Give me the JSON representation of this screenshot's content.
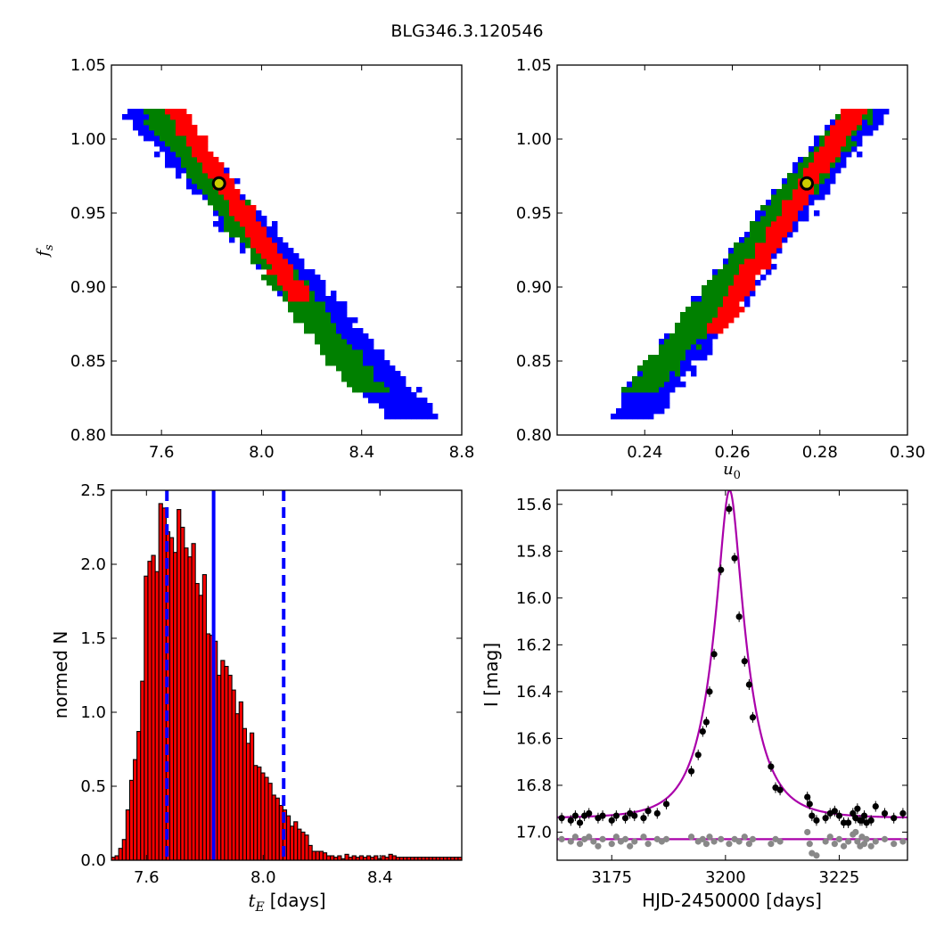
{
  "figure_title": "BLG346.3.120546",
  "chart_data": [
    {
      "id": "fs-vs-tE",
      "type": "heatmap",
      "xlim": [
        7.4,
        8.8
      ],
      "ylim": [
        0.8,
        1.05
      ],
      "xticks": [
        "7.6",
        "8.0",
        "8.4",
        "8.8"
      ],
      "yticks": [
        "0.80",
        "0.85",
        "0.90",
        "0.95",
        "1.00",
        "1.05"
      ],
      "xlabel": "",
      "ylabel": "f",
      "ylabel_sub": "s",
      "regions": [
        {
          "level": "3-sigma",
          "color": "#0000ff",
          "center": [
            [
              7.54,
              1.02
            ],
            [
              8.61,
              0.81
            ]
          ],
          "half_width_x": 0.1
        },
        {
          "level": "2-sigma",
          "color": "#008000",
          "center": [
            [
              7.58,
              1.02
            ],
            [
              8.42,
              0.83
            ]
          ],
          "half_width_x": 0.07
        },
        {
          "level": "1-sigma",
          "color": "#ff0000",
          "center": [
            [
              7.65,
              1.02
            ],
            [
              8.16,
              0.89
            ]
          ],
          "half_width_x": 0.045
        }
      ],
      "best_fit": {
        "x": 7.83,
        "y": 0.97
      }
    },
    {
      "id": "fs-vs-u0",
      "type": "heatmap",
      "xlim": [
        0.22,
        0.3
      ],
      "ylim": [
        0.8,
        1.05
      ],
      "xticks": [
        "0.24",
        "0.26",
        "0.28",
        "0.30"
      ],
      "yticks": [
        "0.80",
        "0.85",
        "0.90",
        "0.95",
        "1.00",
        "1.05"
      ],
      "xlabel": "u",
      "xlabel_sub": "0",
      "ylabel": "",
      "regions": [
        {
          "level": "3-sigma",
          "color": "#0000ff",
          "center": [
            [
              0.2365,
              0.81
            ],
            [
              0.2895,
              1.02
            ]
          ],
          "half_width_x": 0.0055
        },
        {
          "level": "2-sigma",
          "color": "#008000",
          "center": [
            [
              0.2395,
              0.83
            ],
            [
              0.2885,
              1.02
            ]
          ],
          "half_width_x": 0.004
        },
        {
          "level": "1-sigma",
          "color": "#ff0000",
          "center": [
            [
              0.2555,
              0.87
            ],
            [
              0.2875,
              1.02
            ]
          ],
          "half_width_x": 0.0025
        }
      ],
      "best_fit": {
        "x": 0.277,
        "y": 0.97
      }
    },
    {
      "id": "tE-histogram",
      "type": "bar",
      "xlim": [
        7.48,
        8.68
      ],
      "ylim": [
        0,
        2.5
      ],
      "xticks": [
        "7.6",
        "8.0",
        "8.4"
      ],
      "yticks": [
        "0.0",
        "0.5",
        "1.0",
        "1.5",
        "2.0",
        "2.5"
      ],
      "xlabel": "t",
      "xlabel_sub": "E",
      "xlabel_suffix": "[days]",
      "ylabel": "normed N",
      "bin_start": 7.48,
      "bin_width": 0.0125,
      "values": [
        0.02,
        0.03,
        0.08,
        0.14,
        0.34,
        0.54,
        0.68,
        0.87,
        1.21,
        1.92,
        2.02,
        2.06,
        1.95,
        2.41,
        2.38,
        2.22,
        2.18,
        2.08,
        2.37,
        2.25,
        2.11,
        2.05,
        2.14,
        1.87,
        1.79,
        1.93,
        1.53,
        1.52,
        1.48,
        1.25,
        1.35,
        1.31,
        1.25,
        1.15,
        0.99,
        1.07,
        0.89,
        0.79,
        0.86,
        0.64,
        0.63,
        0.59,
        0.56,
        0.52,
        0.44,
        0.42,
        0.37,
        0.34,
        0.3,
        0.23,
        0.26,
        0.21,
        0.19,
        0.17,
        0.1,
        0.06,
        0.06,
        0.06,
        0.05,
        0.03,
        0.03,
        0.02,
        0.03,
        0.01,
        0.04,
        0.02,
        0.03,
        0.02,
        0.03,
        0.02,
        0.03,
        0.02,
        0.03,
        0.01,
        0.03,
        0.02,
        0.04,
        0.03,
        0.02,
        0.02,
        0.02,
        0.02,
        0.02,
        0.02,
        0.02,
        0.02,
        0.02,
        0.02,
        0.02,
        0.02,
        0.02,
        0.02,
        0.02,
        0.02,
        0.02,
        0.02
      ],
      "bar_color": "#ff0000",
      "median": 7.83,
      "lower": 7.67,
      "upper": 8.07
    },
    {
      "id": "light-curve",
      "type": "scatter",
      "xlim": [
        3163,
        3240
      ],
      "ylim": [
        17.12,
        15.54
      ],
      "xticks": [
        "3175",
        "3200",
        "3225"
      ],
      "yticks": [
        "15.6",
        "15.8",
        "16.0",
        "16.2",
        "16.4",
        "16.6",
        "16.8",
        "17.0"
      ],
      "xlabel": "HJD-2450000 [days]",
      "ylabel": "I [mag]",
      "model": {
        "t0": 3200.9,
        "tE": 7.83,
        "u0": 0.277,
        "fs": 0.97,
        "I_base": 16.94,
        "color": "#aa00aa"
      },
      "residual_baseline": 17.03,
      "black_points": [
        {
          "t": 3164,
          "I": 16.94
        },
        {
          "t": 3166,
          "I": 16.95
        },
        {
          "t": 3167,
          "I": 16.93
        },
        {
          "t": 3168,
          "I": 16.96
        },
        {
          "t": 3169,
          "I": 16.93
        },
        {
          "t": 3170,
          "I": 16.92
        },
        {
          "t": 3172,
          "I": 16.94
        },
        {
          "t": 3173,
          "I": 16.93
        },
        {
          "t": 3175,
          "I": 16.95
        },
        {
          "t": 3176,
          "I": 16.93
        },
        {
          "t": 3178,
          "I": 16.94
        },
        {
          "t": 3179,
          "I": 16.92
        },
        {
          "t": 3180,
          "I": 16.93
        },
        {
          "t": 3182,
          "I": 16.94
        },
        {
          "t": 3183,
          "I": 16.91
        },
        {
          "t": 3185,
          "I": 16.92
        },
        {
          "t": 3187,
          "I": 16.88
        },
        {
          "t": 3192.5,
          "I": 16.74
        },
        {
          "t": 3194,
          "I": 16.67
        },
        {
          "t": 3195,
          "I": 16.57
        },
        {
          "t": 3195.8,
          "I": 16.53
        },
        {
          "t": 3196.5,
          "I": 16.4
        },
        {
          "t": 3197.5,
          "I": 16.24
        },
        {
          "t": 3199,
          "I": 15.88
        },
        {
          "t": 3200.8,
          "I": 15.62
        },
        {
          "t": 3202,
          "I": 15.83
        },
        {
          "t": 3203,
          "I": 16.08
        },
        {
          "t": 3204.2,
          "I": 16.27
        },
        {
          "t": 3205.2,
          "I": 16.37
        },
        {
          "t": 3206,
          "I": 16.51
        },
        {
          "t": 3210,
          "I": 16.72
        },
        {
          "t": 3211,
          "I": 16.81
        },
        {
          "t": 3212,
          "I": 16.82
        },
        {
          "t": 3218,
          "I": 16.85
        },
        {
          "t": 3218.5,
          "I": 16.88
        },
        {
          "t": 3219,
          "I": 16.93
        },
        {
          "t": 3220,
          "I": 16.95
        },
        {
          "t": 3222,
          "I": 16.94
        },
        {
          "t": 3223,
          "I": 16.92
        },
        {
          "t": 3224,
          "I": 16.91
        },
        {
          "t": 3225,
          "I": 16.93
        },
        {
          "t": 3226,
          "I": 16.96
        },
        {
          "t": 3227,
          "I": 16.96
        },
        {
          "t": 3228,
          "I": 16.92
        },
        {
          "t": 3228.6,
          "I": 16.94
        },
        {
          "t": 3229,
          "I": 16.9
        },
        {
          "t": 3229.6,
          "I": 16.95
        },
        {
          "t": 3230,
          "I": 16.95
        },
        {
          "t": 3230.5,
          "I": 16.93
        },
        {
          "t": 3231,
          "I": 16.96
        },
        {
          "t": 3232,
          "I": 16.95
        },
        {
          "t": 3233,
          "I": 16.89
        },
        {
          "t": 3235,
          "I": 16.92
        },
        {
          "t": 3237,
          "I": 16.94
        },
        {
          "t": 3239,
          "I": 16.92
        }
      ],
      "gray_points": [
        {
          "t": 3164,
          "I": 17.03
        },
        {
          "t": 3166,
          "I": 17.04
        },
        {
          "t": 3167,
          "I": 17.02
        },
        {
          "t": 3168,
          "I": 17.05
        },
        {
          "t": 3169,
          "I": 17.03
        },
        {
          "t": 3170,
          "I": 17.02
        },
        {
          "t": 3171,
          "I": 17.04
        },
        {
          "t": 3172,
          "I": 17.06
        },
        {
          "t": 3173,
          "I": 17.03
        },
        {
          "t": 3175,
          "I": 17.05
        },
        {
          "t": 3176,
          "I": 17.02
        },
        {
          "t": 3177,
          "I": 17.04
        },
        {
          "t": 3178,
          "I": 17.03
        },
        {
          "t": 3179,
          "I": 17.06
        },
        {
          "t": 3180,
          "I": 17.04
        },
        {
          "t": 3182,
          "I": 17.02
        },
        {
          "t": 3183,
          "I": 17.05
        },
        {
          "t": 3185,
          "I": 17.03
        },
        {
          "t": 3186,
          "I": 17.04
        },
        {
          "t": 3187,
          "I": 17.03
        },
        {
          "t": 3192.5,
          "I": 17.02
        },
        {
          "t": 3194,
          "I": 17.04
        },
        {
          "t": 3195,
          "I": 17.03
        },
        {
          "t": 3195.8,
          "I": 17.05
        },
        {
          "t": 3196.5,
          "I": 17.02
        },
        {
          "t": 3197.5,
          "I": 17.04
        },
        {
          "t": 3199,
          "I": 17.03
        },
        {
          "t": 3200.8,
          "I": 17.05
        },
        {
          "t": 3202,
          "I": 17.03
        },
        {
          "t": 3203,
          "I": 17.04
        },
        {
          "t": 3204.2,
          "I": 17.02
        },
        {
          "t": 3205.2,
          "I": 17.05
        },
        {
          "t": 3206,
          "I": 17.03
        },
        {
          "t": 3210,
          "I": 17.05
        },
        {
          "t": 3211,
          "I": 17.03
        },
        {
          "t": 3212,
          "I": 17.04
        },
        {
          "t": 3218,
          "I": 17.0
        },
        {
          "t": 3218.5,
          "I": 17.05
        },
        {
          "t": 3219,
          "I": 17.09
        },
        {
          "t": 3220,
          "I": 17.1
        },
        {
          "t": 3222,
          "I": 17.04
        },
        {
          "t": 3223,
          "I": 17.02
        },
        {
          "t": 3224,
          "I": 17.05
        },
        {
          "t": 3225,
          "I": 17.03
        },
        {
          "t": 3226,
          "I": 17.06
        },
        {
          "t": 3227,
          "I": 17.04
        },
        {
          "t": 3228,
          "I": 17.01
        },
        {
          "t": 3228.6,
          "I": 17.0
        },
        {
          "t": 3229,
          "I": 17.04
        },
        {
          "t": 3229.6,
          "I": 17.06
        },
        {
          "t": 3230,
          "I": 17.02
        },
        {
          "t": 3230.5,
          "I": 17.05
        },
        {
          "t": 3231,
          "I": 17.03
        },
        {
          "t": 3232,
          "I": 17.06
        },
        {
          "t": 3233,
          "I": 17.04
        },
        {
          "t": 3235,
          "I": 17.03
        },
        {
          "t": 3237,
          "I": 17.05
        },
        {
          "t": 3239,
          "I": 17.04
        }
      ]
    }
  ]
}
